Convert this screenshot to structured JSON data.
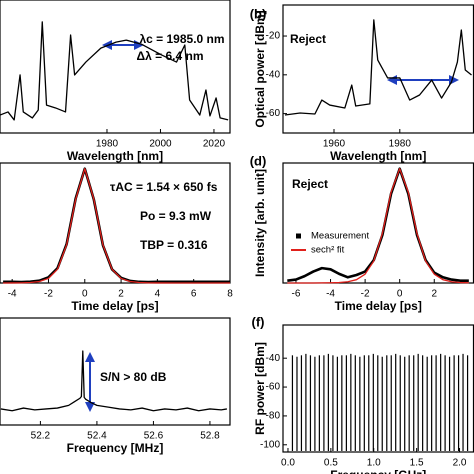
{
  "chart_data": [
    {
      "type": "line",
      "xlabel": "Wavelength [nm]",
      "annotations": [
        "λc = 1985.0 nm",
        "Δλ = 6.4 nm"
      ],
      "xlim": [
        1940,
        2026
      ],
      "xticks": [
        1980,
        2000,
        2020
      ],
      "ylim": [
        -75,
        -15
      ],
      "x": [
        1940,
        1943,
        1945.3,
        1947.5,
        1948.7,
        1952.1,
        1954.3,
        1955.8,
        1957.4,
        1960.8,
        1964.5,
        1966.4,
        1967.9,
        1972.1,
        1977.7,
        1983.4,
        1987.2,
        1992.8,
        2000.4,
        2006.0,
        2009.1,
        2010.9,
        2014.7,
        2017.0,
        2018.5,
        2020.8,
        2022.3,
        2025.3
      ],
      "series": [
        {
          "color": "#000000",
          "values": [
            -66.9,
            -65.5,
            -69.1,
            -48.8,
            -65.5,
            -68.2,
            -64.6,
            -24.9,
            -62.4,
            -63.7,
            -65.5,
            -30.8,
            -48.8,
            -43.0,
            -36.7,
            -34.0,
            -33.1,
            -34.9,
            -39.8,
            -43.0,
            -35.3,
            -60.1,
            -66.9,
            -55.6,
            -67.3,
            -59.2,
            -68.2,
            -69.1
          ]
        }
      ]
    },
    {
      "type": "line",
      "panel_label": "(b)",
      "xlabel": "Wavelength [nm]",
      "ylabel": "Optical power [dBm]",
      "annotations": [
        "Reject"
      ],
      "xlim": [
        1944.5,
        2002.4
      ],
      "xticks": [
        1960,
        1980
      ],
      "ylim": [
        -70,
        -4
      ],
      "yticks": [
        -20,
        -40,
        -60
      ],
      "x": [
        1945.1,
        1949.7,
        1954.2,
        1956.3,
        1958.7,
        1963.3,
        1965.4,
        1966.6,
        1970.9,
        1972.1,
        1973.3,
        1976.3,
        1980.0,
        1983.0,
        1986.0,
        1989.7,
        1992.7,
        1995.7,
        1997.5,
        1998.7,
        1999.9,
        2001.8
      ],
      "series": [
        {
          "color": "#000000",
          "values": [
            -60.7,
            -59.7,
            -60.2,
            -53.0,
            -55.6,
            -57.1,
            -45.3,
            -56.1,
            -55.0,
            -11.7,
            -32.4,
            -41.6,
            -41.6,
            -53.0,
            -50.4,
            -42.7,
            -52.0,
            -43.7,
            -33.4,
            -16.9,
            -37.5,
            -40.1
          ]
        }
      ]
    },
    {
      "type": "line",
      "xlabel": "Time delay [ps]",
      "annotations": [
        "τAC = 1.54 × 650 fs",
        "Po = 9.3 mW",
        "TBP = 0.316"
      ],
      "xlim": [
        -4.67,
        8
      ],
      "xticks": [
        -4,
        -2,
        0,
        2,
        4,
        6,
        8
      ],
      "ylim": [
        0,
        1.05
      ],
      "x": [
        -4.5,
        -4,
        -3.5,
        -3,
        -2.5,
        -2,
        -1.5,
        -1,
        -0.5,
        0,
        0.5,
        1,
        1.5,
        2,
        2.5,
        3,
        3.5,
        4,
        5,
        6,
        7,
        8
      ],
      "series": [
        {
          "color": "#000000",
          "values": [
            0.01,
            0.01,
            0.008,
            0.012,
            0.02,
            0.05,
            0.13,
            0.34,
            0.74,
            1.0,
            0.73,
            0.33,
            0.12,
            0.045,
            0.018,
            0.01,
            0.008,
            0.01,
            0.01,
            0.01,
            0.01,
            0.01
          ]
        },
        {
          "color": "#e0201b",
          "values": [
            0.0001,
            0.0004,
            0.0014,
            0.0042,
            0.013,
            0.04,
            0.121,
            0.334,
            0.733,
            1.0,
            0.733,
            0.334,
            0.121,
            0.04,
            0.013,
            0.0042,
            0.0014,
            0.0004,
            0,
            0,
            0,
            0
          ]
        }
      ]
    },
    {
      "type": "line",
      "panel_label": "(d)",
      "xlabel": "Time delay [ps]",
      "ylabel": "Intensity [arb. unit]",
      "annotations": [
        "Reject"
      ],
      "legend": "center left",
      "xlim": [
        -6.75,
        4.27
      ],
      "xticks": [
        -6,
        -4,
        -2,
        0,
        2
      ],
      "ylim": [
        0,
        1.05
      ],
      "x": [
        -6.5,
        -6,
        -5.5,
        -5,
        -4.5,
        -4,
        -3.5,
        -3,
        -2.5,
        -2,
        -1.5,
        -1,
        -0.5,
        0,
        0.5,
        1,
        1.5,
        2,
        2.5,
        3,
        3.5,
        4
      ],
      "series": [
        {
          "name": "Measurement",
          "color": "#000000",
          "marker": "square",
          "values": [
            0.02,
            0.03,
            0.06,
            0.1,
            0.13,
            0.12,
            0.08,
            0.05,
            0.07,
            0.1,
            0.2,
            0.42,
            0.78,
            1.0,
            0.78,
            0.42,
            0.2,
            0.09,
            0.05,
            0.03,
            0.02,
            0.02
          ]
        },
        {
          "name": "sech² fit",
          "color": "#e0201b",
          "marker": "line",
          "values": [
            0,
            0,
            0,
            0,
            0.001,
            0.002,
            0.004,
            0.011,
            0.029,
            0.077,
            0.192,
            0.434,
            0.794,
            1,
            0.794,
            0.434,
            0.192,
            0.077,
            0.029,
            0.011,
            0.004,
            0.002
          ]
        }
      ]
    },
    {
      "type": "line",
      "xlabel": "Frequency [MHz]",
      "annotations": [
        "S/N > 80 dB"
      ],
      "xlim": [
        52.057,
        52.871
      ],
      "xticks": [
        52.2,
        52.4,
        52.6,
        52.8
      ],
      "ylim": [
        -130,
        -10
      ],
      "x": [
        52.06,
        52.1,
        52.14,
        52.18,
        52.22,
        52.26,
        52.3,
        52.32,
        52.34,
        52.345,
        52.35,
        52.355,
        52.36,
        52.38,
        52.4,
        52.44,
        52.48,
        52.52,
        52.56,
        52.6,
        52.64,
        52.68,
        52.72,
        52.76,
        52.8,
        52.84,
        52.86
      ],
      "series": [
        {
          "color": "#000000",
          "values": [
            -112,
            -114,
            -111,
            -113,
            -112,
            -111,
            -108,
            -104,
            -100,
            -98,
            -47,
            -99,
            -101,
            -105,
            -108,
            -110,
            -112,
            -113,
            -111,
            -114,
            -112,
            -113,
            -111,
            -114,
            -112,
            -113,
            -112
          ]
        }
      ]
    },
    {
      "type": "stem",
      "panel_label": "(f)",
      "xlabel": "Frequency [GHz]",
      "ylabel": "RF power [dBm]",
      "xlim": [
        -0.058,
        2.163
      ],
      "xticks": [
        {
          "value": 0,
          "label": "0.0"
        },
        0.5,
        {
          "value": 1,
          "label": "1.0"
        },
        1.5,
        {
          "value": 2,
          "label": "2.0"
        }
      ],
      "ylim": [
        -105,
        -17
      ],
      "yticks": [
        -40,
        -60,
        -80,
        -100
      ],
      "color": "#000000",
      "x": [
        0.052,
        0.105,
        0.157,
        0.209,
        0.262,
        0.314,
        0.366,
        0.419,
        0.471,
        0.524,
        0.576,
        0.628,
        0.681,
        0.733,
        0.785,
        0.838,
        0.89,
        0.942,
        0.995,
        1.047,
        1.099,
        1.152,
        1.204,
        1.256,
        1.309,
        1.361,
        1.413,
        1.466,
        1.518,
        1.57,
        1.623,
        1.675,
        1.727,
        1.78,
        1.832,
        1.884,
        1.937,
        1.989,
        2.041,
        2.094
      ],
      "values": [
        -38,
        -39,
        -38,
        -37,
        -38,
        -39,
        -38,
        -38,
        -37,
        -38,
        -39,
        -38,
        -38,
        -37,
        -38,
        -39,
        -38,
        -38,
        -37,
        -38,
        -39,
        -38,
        -38,
        -37,
        -38,
        -39,
        -38,
        -38,
        -37,
        -38,
        -39,
        -38,
        -38,
        -37,
        -38,
        -39,
        -38,
        -38,
        -37,
        -38
      ]
    }
  ]
}
